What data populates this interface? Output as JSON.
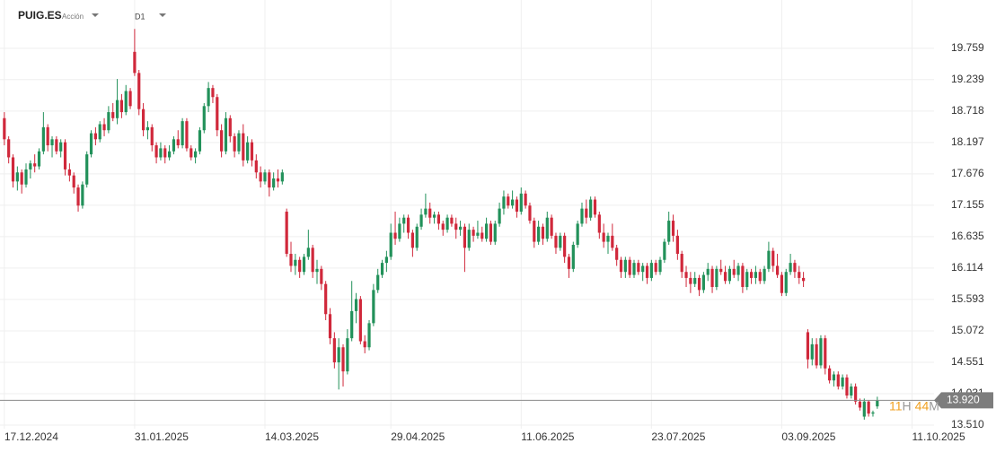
{
  "header": {
    "symbol": "PUIG.ES",
    "kind": "Acción",
    "timeframe": "D1"
  },
  "chart_data": {
    "type": "candlestick",
    "up_color": "#22915a",
    "down_color": "#d0283b",
    "grid": true,
    "xlim": [
      -1,
      212
    ],
    "ylim": [
      13.45,
      20.56
    ],
    "yticks": [
      19.759,
      19.239,
      18.718,
      18.197,
      17.676,
      17.155,
      16.635,
      16.114,
      15.593,
      15.072,
      14.551,
      14.031,
      {
        "value": 13.51,
        "label": "13.510"
      }
    ],
    "xticks": [
      {
        "value": 0,
        "label": "17.12.2024"
      },
      {
        "value": 30,
        "label": "31.01.2025"
      },
      {
        "value": 60,
        "label": "14.03.2025"
      },
      {
        "value": 89,
        "label": "29.04.2025"
      },
      {
        "value": 119,
        "label": "11.06.2025"
      },
      {
        "value": 149,
        "label": "23.07.2025"
      },
      {
        "value": 179,
        "label": "03.09.2025"
      },
      {
        "value": 209,
        "label": "11.10.2025"
      }
    ],
    "last_price": {
      "value": 13.92,
      "label": "13.920"
    },
    "countdown": {
      "hours": "11",
      "hours_unit": "H",
      "minutes": "44",
      "minutes_unit": "M"
    },
    "candles": [
      [
        18.6,
        18.7,
        18.15,
        18.25
      ],
      [
        18.25,
        18.3,
        17.85,
        17.95
      ],
      [
        17.95,
        18.0,
        17.45,
        17.55
      ],
      [
        17.55,
        17.8,
        17.4,
        17.7
      ],
      [
        17.7,
        17.75,
        17.35,
        17.5
      ],
      [
        17.5,
        17.85,
        17.45,
        17.75
      ],
      [
        17.75,
        17.9,
        17.6,
        17.85
      ],
      [
        17.85,
        18.0,
        17.7,
        17.8
      ],
      [
        17.8,
        18.1,
        17.75,
        18.05
      ],
      [
        18.05,
        18.7,
        18.0,
        18.45
      ],
      [
        18.45,
        18.5,
        18.05,
        18.15
      ],
      [
        18.15,
        18.3,
        17.95,
        18.25
      ],
      [
        18.25,
        18.3,
        18.0,
        18.05
      ],
      [
        18.05,
        18.25,
        17.95,
        18.2
      ],
      [
        18.2,
        18.25,
        17.65,
        17.75
      ],
      [
        17.75,
        17.85,
        17.55,
        17.65
      ],
      [
        17.65,
        17.7,
        17.35,
        17.45
      ],
      [
        17.45,
        17.5,
        17.05,
        17.15
      ],
      [
        17.15,
        17.55,
        17.1,
        17.5
      ],
      [
        17.5,
        18.05,
        17.45,
        18.0
      ],
      [
        18.0,
        18.4,
        17.95,
        18.35
      ],
      [
        18.35,
        18.45,
        18.15,
        18.25
      ],
      [
        18.25,
        18.55,
        18.2,
        18.5
      ],
      [
        18.5,
        18.6,
        18.3,
        18.4
      ],
      [
        18.4,
        18.8,
        18.35,
        18.7
      ],
      [
        18.7,
        18.85,
        18.55,
        18.6
      ],
      [
        18.6,
        19.25,
        18.5,
        18.9
      ],
      [
        18.9,
        19.0,
        18.6,
        18.7
      ],
      [
        18.7,
        19.15,
        18.65,
        19.05
      ],
      [
        19.05,
        19.1,
        18.75,
        18.8
      ],
      [
        19.7,
        20.08,
        19.3,
        19.35
      ],
      [
        19.35,
        19.4,
        18.65,
        18.75
      ],
      [
        18.75,
        18.85,
        18.3,
        18.4
      ],
      [
        18.4,
        18.55,
        18.25,
        18.45
      ],
      [
        18.45,
        18.5,
        18.05,
        18.15
      ],
      [
        18.15,
        18.2,
        17.85,
        17.95
      ],
      [
        17.95,
        18.2,
        17.9,
        18.1
      ],
      [
        18.1,
        18.15,
        17.85,
        17.95
      ],
      [
        17.95,
        18.15,
        17.9,
        18.05
      ],
      [
        18.05,
        18.3,
        18.0,
        18.25
      ],
      [
        18.25,
        18.4,
        18.1,
        18.15
      ],
      [
        18.15,
        18.6,
        18.1,
        18.55
      ],
      [
        18.55,
        18.6,
        18.05,
        18.1
      ],
      [
        18.1,
        18.15,
        17.9,
        17.95
      ],
      [
        17.95,
        18.1,
        17.85,
        18.05
      ],
      [
        18.05,
        18.45,
        18.0,
        18.4
      ],
      [
        18.4,
        18.85,
        18.35,
        18.8
      ],
      [
        18.8,
        19.2,
        18.7,
        19.1
      ],
      [
        19.1,
        19.15,
        18.85,
        18.95
      ],
      [
        18.95,
        19.0,
        18.3,
        18.4
      ],
      [
        18.4,
        18.5,
        17.95,
        18.05
      ],
      [
        18.05,
        18.7,
        18.0,
        18.6
      ],
      [
        18.6,
        18.65,
        18.2,
        18.3
      ],
      [
        18.3,
        18.35,
        17.95,
        18.05
      ],
      [
        18.05,
        18.4,
        18.0,
        18.35
      ],
      [
        18.35,
        18.5,
        17.8,
        17.9
      ],
      [
        17.9,
        18.3,
        17.85,
        18.2
      ],
      [
        18.2,
        18.25,
        17.8,
        17.9
      ],
      [
        17.9,
        18.0,
        17.6,
        17.7
      ],
      [
        17.7,
        17.8,
        17.45,
        17.55
      ],
      [
        17.55,
        17.75,
        17.5,
        17.7
      ],
      [
        17.7,
        17.75,
        17.3,
        17.45
      ],
      [
        17.45,
        17.7,
        17.4,
        17.6
      ],
      [
        17.6,
        17.75,
        17.45,
        17.55
      ],
      [
        17.55,
        17.75,
        17.5,
        17.7
      ],
      [
        17.05,
        17.1,
        16.3,
        16.35
      ],
      [
        16.35,
        16.55,
        16.05,
        16.15
      ],
      [
        16.15,
        16.35,
        16.0,
        16.25
      ],
      [
        16.25,
        16.3,
        15.95,
        16.05
      ],
      [
        16.05,
        16.35,
        16.0,
        16.3
      ],
      [
        16.3,
        16.75,
        16.25,
        16.45
      ],
      [
        16.45,
        16.5,
        15.95,
        16.05
      ],
      [
        16.05,
        16.25,
        15.85,
        16.1
      ],
      [
        16.1,
        16.15,
        15.75,
        15.85
      ],
      [
        15.85,
        15.9,
        15.25,
        15.35
      ],
      [
        15.35,
        15.45,
        14.85,
        14.95
      ],
      [
        14.95,
        15.05,
        14.45,
        14.55
      ],
      [
        14.55,
        14.95,
        14.1,
        14.8
      ],
      [
        14.8,
        14.85,
        14.15,
        14.4
      ],
      [
        14.4,
        15.1,
        14.35,
        14.95
      ],
      [
        14.95,
        15.9,
        14.9,
        15.4
      ],
      [
        15.4,
        15.7,
        15.2,
        15.6
      ],
      [
        15.6,
        15.65,
        14.85,
        14.9
      ],
      [
        14.9,
        15.0,
        14.7,
        14.8
      ],
      [
        14.8,
        15.25,
        14.75,
        15.2
      ],
      [
        15.2,
        15.85,
        15.15,
        15.75
      ],
      [
        15.75,
        16.1,
        15.7,
        16.0
      ],
      [
        16.0,
        16.25,
        15.95,
        16.2
      ],
      [
        16.2,
        16.4,
        16.05,
        16.3
      ],
      [
        16.3,
        16.85,
        16.25,
        16.7
      ],
      [
        16.7,
        17.05,
        16.5,
        16.6
      ],
      [
        16.6,
        16.95,
        16.55,
        16.85
      ],
      [
        16.85,
        17.0,
        16.7,
        16.95
      ],
      [
        16.95,
        17.0,
        16.6,
        16.7
      ],
      [
        16.7,
        16.75,
        16.3,
        16.45
      ],
      [
        16.45,
        16.85,
        16.4,
        16.8
      ],
      [
        16.8,
        17.1,
        16.75,
        17.0
      ],
      [
        17.0,
        17.35,
        16.95,
        17.1
      ],
      [
        17.1,
        17.2,
        16.85,
        16.95
      ],
      [
        16.95,
        17.05,
        16.85,
        17.0
      ],
      [
        17.0,
        17.05,
        16.75,
        16.85
      ],
      [
        16.85,
        16.9,
        16.65,
        16.75
      ],
      [
        16.75,
        17.0,
        16.7,
        16.95
      ],
      [
        16.95,
        17.0,
        16.8,
        16.85
      ],
      [
        16.85,
        16.95,
        16.6,
        16.75
      ],
      [
        16.75,
        16.9,
        16.65,
        16.8
      ],
      [
        16.8,
        16.85,
        16.05,
        16.45
      ],
      [
        16.45,
        16.85,
        16.4,
        16.75
      ],
      [
        16.75,
        16.8,
        16.55,
        16.65
      ],
      [
        16.65,
        16.9,
        16.6,
        16.7
      ],
      [
        16.7,
        16.8,
        16.55,
        16.6
      ],
      [
        16.6,
        16.95,
        16.55,
        16.85
      ],
      [
        16.85,
        16.9,
        16.5,
        16.55
      ],
      [
        16.55,
        16.9,
        16.5,
        16.85
      ],
      [
        16.85,
        17.2,
        16.8,
        17.1
      ],
      [
        17.1,
        17.4,
        17.0,
        17.3
      ],
      [
        17.3,
        17.35,
        17.1,
        17.15
      ],
      [
        17.15,
        17.4,
        17.1,
        17.25
      ],
      [
        17.25,
        17.3,
        16.95,
        17.05
      ],
      [
        17.05,
        17.45,
        17.0,
        17.35
      ],
      [
        17.35,
        17.4,
        17.1,
        17.15
      ],
      [
        17.15,
        17.2,
        16.85,
        16.9
      ],
      [
        16.9,
        16.95,
        16.45,
        16.55
      ],
      [
        16.55,
        16.9,
        16.5,
        16.8
      ],
      [
        16.8,
        16.85,
        16.5,
        16.6
      ],
      [
        16.6,
        17.05,
        16.55,
        16.95
      ],
      [
        16.95,
        17.0,
        16.6,
        16.65
      ],
      [
        16.65,
        16.7,
        16.35,
        16.45
      ],
      [
        16.45,
        16.7,
        16.4,
        16.65
      ],
      [
        16.65,
        16.7,
        16.2,
        16.3
      ],
      [
        16.3,
        16.35,
        15.95,
        16.1
      ],
      [
        16.1,
        16.55,
        16.05,
        16.5
      ],
      [
        16.5,
        16.9,
        16.45,
        16.85
      ],
      [
        16.85,
        17.2,
        16.8,
        17.1
      ],
      [
        17.1,
        17.25,
        16.85,
        16.95
      ],
      [
        16.95,
        17.3,
        16.9,
        17.25
      ],
      [
        17.25,
        17.3,
        16.95,
        17.0
      ],
      [
        17.0,
        17.05,
        16.6,
        16.7
      ],
      [
        16.7,
        16.85,
        16.45,
        16.55
      ],
      [
        16.55,
        16.7,
        16.35,
        16.65
      ],
      [
        16.65,
        16.85,
        16.4,
        16.45
      ],
      [
        16.45,
        16.5,
        16.15,
        16.25
      ],
      [
        16.25,
        16.3,
        15.95,
        16.05
      ],
      [
        16.05,
        16.3,
        15.95,
        16.25
      ],
      [
        16.25,
        16.3,
        15.95,
        16.0
      ],
      [
        16.0,
        16.25,
        15.95,
        16.2
      ],
      [
        16.2,
        16.25,
        16.0,
        16.05
      ],
      [
        16.05,
        16.2,
        15.9,
        16.15
      ],
      [
        16.15,
        16.2,
        15.85,
        15.95
      ],
      [
        15.95,
        16.25,
        15.9,
        16.2
      ],
      [
        16.2,
        16.25,
        16.0,
        16.05
      ],
      [
        16.05,
        16.3,
        16.0,
        16.25
      ],
      [
        16.25,
        16.6,
        16.2,
        16.55
      ],
      [
        16.55,
        17.05,
        16.5,
        16.9
      ],
      [
        16.9,
        17.0,
        16.55,
        16.65
      ],
      [
        16.65,
        16.75,
        16.25,
        16.35
      ],
      [
        16.35,
        16.4,
        15.95,
        16.05
      ],
      [
        16.05,
        16.15,
        15.8,
        15.95
      ],
      [
        15.95,
        16.05,
        15.7,
        15.85
      ],
      [
        15.85,
        16.05,
        15.8,
        15.95
      ],
      [
        15.95,
        16.0,
        15.65,
        15.75
      ],
      [
        15.75,
        16.05,
        15.7,
        16.0
      ],
      [
        16.0,
        16.2,
        15.9,
        16.1
      ],
      [
        16.1,
        16.15,
        15.7,
        15.8
      ],
      [
        15.8,
        16.15,
        15.75,
        16.1
      ],
      [
        16.1,
        16.25,
        16.0,
        16.05
      ],
      [
        16.05,
        16.15,
        15.85,
        15.9
      ],
      [
        15.9,
        16.15,
        15.85,
        16.1
      ],
      [
        16.1,
        16.25,
        15.95,
        16.0
      ],
      [
        16.0,
        16.2,
        15.9,
        16.15
      ],
      [
        16.15,
        16.2,
        15.7,
        15.8
      ],
      [
        15.8,
        16.1,
        15.75,
        16.05
      ],
      [
        16.05,
        16.1,
        15.85,
        15.95
      ],
      [
        15.95,
        16.15,
        15.85,
        16.05
      ],
      [
        16.05,
        16.1,
        15.85,
        15.9
      ],
      [
        15.9,
        16.15,
        15.85,
        16.1
      ],
      [
        16.1,
        16.55,
        16.05,
        16.4
      ],
      [
        16.4,
        16.45,
        16.05,
        16.15
      ],
      [
        16.15,
        16.35,
        15.95,
        16.0
      ],
      [
        16.0,
        16.05,
        15.65,
        15.7
      ],
      [
        15.7,
        16.1,
        15.65,
        16.05
      ],
      [
        16.05,
        16.35,
        16.0,
        16.2
      ],
      [
        16.2,
        16.25,
        15.95,
        16.05
      ],
      [
        16.05,
        16.15,
        15.85,
        15.95
      ],
      [
        15.95,
        16.05,
        15.8,
        15.9
      ],
      [
        15.05,
        15.1,
        14.45,
        14.6
      ],
      [
        14.6,
        14.95,
        14.5,
        14.85
      ],
      [
        14.85,
        14.95,
        14.45,
        14.5
      ],
      [
        14.5,
        15.0,
        14.45,
        14.95
      ],
      [
        14.95,
        15.0,
        14.35,
        14.45
      ],
      [
        14.45,
        14.5,
        14.2,
        14.25
      ],
      [
        14.25,
        14.4,
        14.15,
        14.35
      ],
      [
        14.35,
        14.4,
        14.1,
        14.15
      ],
      [
        14.15,
        14.35,
        14.1,
        14.3
      ],
      [
        14.3,
        14.35,
        13.95,
        14.0
      ],
      [
        14.0,
        14.2,
        13.95,
        14.15
      ],
      [
        14.15,
        14.2,
        13.85,
        13.9
      ],
      [
        13.9,
        13.95,
        13.75,
        13.8
      ],
      [
        13.65,
        13.95,
        13.6,
        13.9
      ],
      [
        13.9,
        13.92,
        13.65,
        13.7
      ],
      [
        13.7,
        13.75,
        13.65,
        13.72
      ],
      [
        13.82,
        13.98,
        13.78,
        13.92
      ]
    ]
  }
}
